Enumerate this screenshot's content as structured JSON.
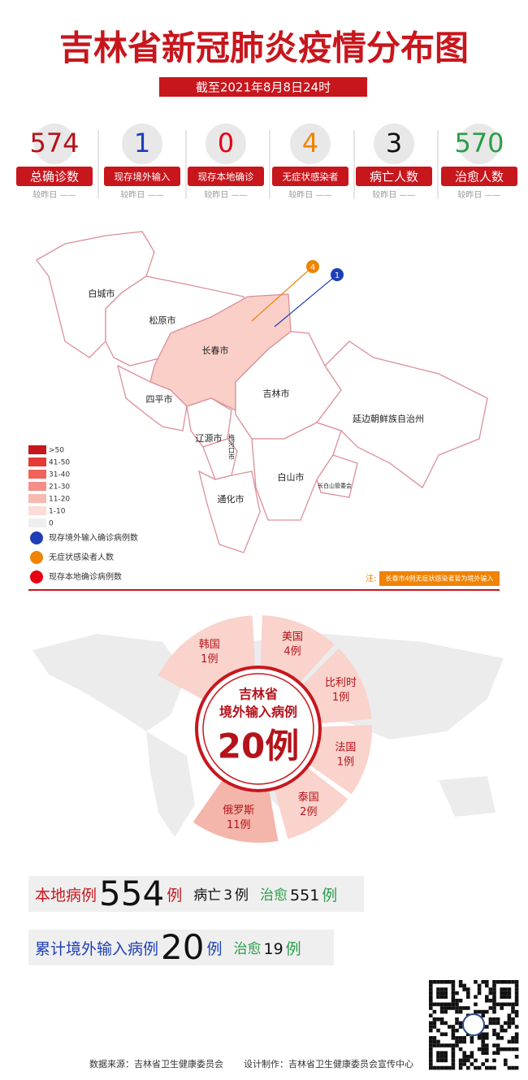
{
  "header": {
    "title": "吉林省新冠肺炎疫情分布图",
    "date": "截至2021年8月8日24时"
  },
  "stats": [
    {
      "value": 574,
      "label": "总确诊数",
      "change": "较昨日 ——"
    },
    {
      "value": 1,
      "label": "现存境外输入",
      "change": "较昨日 ——"
    },
    {
      "value": 0,
      "label": "现存本地确诊",
      "change": "较昨日 ——"
    },
    {
      "value": 4,
      "label": "无症状感染者",
      "change": "较昨日 ——"
    },
    {
      "value": 3,
      "label": "病亡人数",
      "change": "较昨日 ——"
    },
    {
      "value": 570,
      "label": "治愈人数",
      "change": "较昨日 ——"
    }
  ],
  "map": {
    "regions": [
      "白城市",
      "松原市",
      "长春市",
      "吉林市",
      "延边朝鲜族自治州",
      "四平市",
      "辽源市",
      "梅河口市",
      "通化市",
      "白山市",
      "长白山管委会"
    ],
    "markers": [
      {
        "value": 4
      },
      {
        "value": 1
      }
    ],
    "scale": [
      ">50",
      "41-50",
      "31-40",
      "21-30",
      "11-20",
      "1-10",
      "0"
    ],
    "legend": [
      "现存境外输入确诊病例数",
      "无症状感染者人数",
      "现存本地确诊病例数"
    ],
    "note": {
      "prefix": "注:",
      "text": "长春市4例无症状感染者皆为境外输入"
    }
  },
  "imported": {
    "title": [
      "吉林省",
      "境外输入病例"
    ],
    "total": "20例",
    "countries": [
      {
        "name": "韩国",
        "count": "1例"
      },
      {
        "name": "美国",
        "count": "4例"
      },
      {
        "name": "比利时",
        "count": "1例"
      },
      {
        "name": "法国",
        "count": "1例"
      },
      {
        "name": "泰国",
        "count": "2例"
      },
      {
        "name": "俄罗斯",
        "count": "11例"
      }
    ]
  },
  "summary": {
    "rows": [
      {
        "parts": [
          "本地病例",
          554,
          "例",
          "病亡",
          3,
          "例",
          "治愈",
          551,
          "例"
        ]
      },
      {
        "parts": [
          "累计境外输入病例",
          20,
          "例",
          "治愈",
          19,
          "例"
        ]
      }
    ]
  },
  "footer": {
    "source": "数据来源：吉林省卫生健康委员会",
    "design": "设计制作：吉林省卫生健康委员会宣传中心"
  }
}
